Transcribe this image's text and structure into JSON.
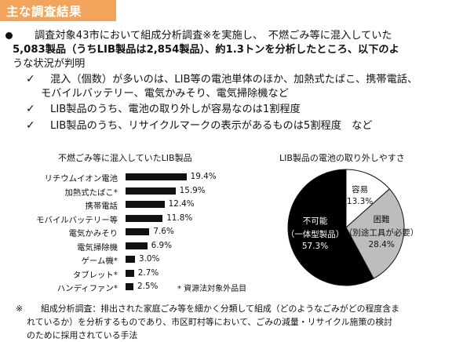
{
  "header": {
    "title": "主な調査結果"
  },
  "summary": {
    "line1": "調査対象43市において組成分析調査※を実施し、　不燃ごみ等に混入していた",
    "line2": "5,083製品（うちLIB製品は2,854製品）、約1.3トンを分析したところ、以下のよ",
    "line3": "うな状況が判明",
    "checks": [
      "混入（個数）が多いのは、LIB等の電池単体のほか、加熱式たばこ、携帯電話、",
      "LIB製品のうち、電池の取り外しが容易なのは1割程度",
      "LIB製品のうち、リサイクルマークの表示があるものは5割程度　など"
    ],
    "check1_cont": "モバイルバッテリー、電気かみそり、電気掃除機など",
    "check_mark": "✓"
  },
  "chart_data": [
    {
      "type": "bar",
      "title": "不燃ごみ等に混入していたLIB製品",
      "categories": [
        "リチウムイオン電池",
        "加熱式たばこ*",
        "携帯電話",
        "モバイルバッテリー等",
        "電気かみそり",
        "電気掃除機",
        "ゲーム機*",
        "タブレット*",
        "ハンディファン*"
      ],
      "values": [
        19.4,
        15.9,
        12.4,
        11.8,
        7.6,
        6.9,
        3.0,
        2.7,
        2.5
      ],
      "value_labels": [
        "19.4%",
        "15.9%",
        "12.4%",
        "11.8%",
        "7.6%",
        "6.9%",
        "3.0%",
        "2.7%",
        "2.5%"
      ],
      "note": "* 資源法対象外品目",
      "bar_color": "#111111"
    },
    {
      "type": "pie",
      "title": "LIB製品の電池の取り外しやすさ",
      "slices": [
        {
          "label": "容易",
          "sublabel": "",
          "value": 13.3,
          "value_label": "13.3%",
          "color": "#ffffff"
        },
        {
          "label": "困難",
          "sublabel": "（別途工具が必要）",
          "value": 28.4,
          "value_label": "28.4%",
          "color": "#bdbdbd"
        },
        {
          "label": "不可能",
          "sublabel": "（一体型製品）",
          "value": 57.3,
          "value_label": "57.3%",
          "color": "#000000"
        }
      ]
    }
  ],
  "footnote": {
    "mark": "※",
    "line1": "組成分析調査：排出された家庭ごみ等を細かく分類して組成（どのようなごみがどの程度含ま",
    "line2": "れているか）を分析するものであり、市区町村等において、ごみの減量・リサイクル施策の検討",
    "line3": "のために採用されている手法"
  }
}
